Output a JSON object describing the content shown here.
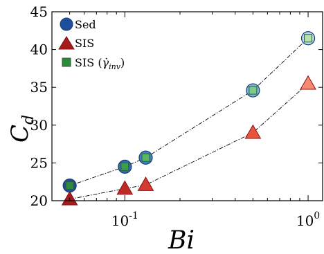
{
  "chart_data": {
    "type": "scatter",
    "xscale": "log",
    "xlim": [
      0.04,
      1.2
    ],
    "ylim": [
      20,
      45
    ],
    "xlabel": "Bi",
    "ylabel": "C",
    "ylabel_sub": "d",
    "yticks": [
      "20",
      "25",
      "30",
      "35",
      "40",
      "45"
    ],
    "ytick_values": [
      20,
      25,
      30,
      35,
      40,
      45
    ],
    "xticks": [
      {
        "value": 0.1,
        "base": "10",
        "exp": "-1"
      },
      {
        "value": 1,
        "base": "10",
        "exp": "0"
      }
    ],
    "grid": false,
    "legend_position": "top-left",
    "series": [
      {
        "name": "Sed",
        "marker": "circle",
        "color": "#1f4e9c",
        "points": [
          [
            0.05,
            22.0
          ],
          [
            0.1,
            24.5
          ],
          [
            0.13,
            25.7
          ],
          [
            0.5,
            34.6
          ],
          [
            1.0,
            41.5
          ]
        ]
      },
      {
        "name": "SIS",
        "marker": "triangle",
        "color": "#a51c1c",
        "points": [
          [
            0.05,
            20.2
          ],
          [
            0.1,
            21.6
          ],
          [
            0.13,
            22.1
          ],
          [
            0.5,
            29.0
          ],
          [
            1.0,
            35.5
          ]
        ]
      },
      {
        "name": "SIS (γ̇inv)",
        "label_main": "SIS (",
        "label_sym": "γ̇",
        "label_sub": "inv",
        "label_close": ")",
        "marker": "square",
        "color": "#2e8b3e",
        "points": [
          [
            0.05,
            22.0
          ],
          [
            0.1,
            24.5
          ],
          [
            0.13,
            25.7
          ],
          [
            0.5,
            34.6
          ],
          [
            1.0,
            41.5
          ]
        ]
      }
    ],
    "fit_lines": [
      {
        "color": "#000000",
        "style": "dash-dot",
        "points": [
          [
            0.05,
            22.0
          ],
          [
            0.1,
            24.5
          ],
          [
            0.13,
            25.7
          ],
          [
            0.5,
            34.6
          ],
          [
            1.0,
            41.5
          ]
        ]
      },
      {
        "color": "#000000",
        "style": "dash-dot",
        "points": [
          [
            0.05,
            20.2
          ],
          [
            0.1,
            21.6
          ],
          [
            0.13,
            22.1
          ],
          [
            0.5,
            29.0
          ],
          [
            1.0,
            35.5
          ]
        ]
      }
    ]
  }
}
